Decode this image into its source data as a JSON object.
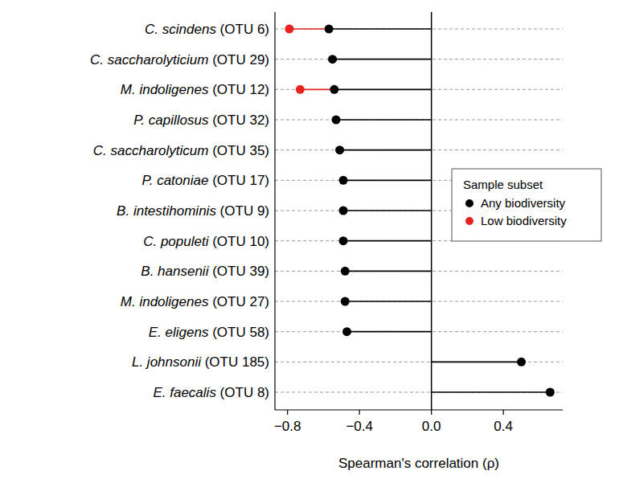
{
  "chart_data": {
    "type": "lollipop",
    "orientation": "horizontal",
    "categories": [
      "C. scindens (OTU 6)",
      "C. saccharolyticium (OTU 29)",
      "M. indoligenes (OTU 12)",
      "P. capillosus (OTU 32)",
      "C. saccharolyticum (OTU 35)",
      "P. catoniae (OTU 17)",
      "B. intestihominis (OTU 9)",
      "C. populeti (OTU 10)",
      "B. hansenii (OTU 39)",
      "M. indoligenes (OTU 27)",
      "E. eligens (OTU 58)",
      "L. johnsonii (OTU 185)",
      "E. faecalis (OTU 8)"
    ],
    "series": [
      {
        "name": "Any biodiversity",
        "color": "#000000",
        "values": [
          -0.57,
          -0.55,
          -0.54,
          -0.53,
          -0.51,
          -0.49,
          -0.49,
          -0.49,
          -0.48,
          -0.48,
          -0.47,
          0.5,
          0.66
        ]
      },
      {
        "name": "Low biodiversity",
        "color": "#e8231f",
        "values": [
          -0.79,
          null,
          -0.73,
          null,
          null,
          null,
          null,
          null,
          null,
          null,
          null,
          null,
          null
        ]
      }
    ],
    "x_label": "Spearman's correlation (ρ)",
    "xlim": [
      -0.87,
      0.73
    ],
    "xticks": [
      {
        "value": -0.8,
        "label": "−0.8"
      },
      {
        "value": -0.4,
        "label": "−0.4"
      },
      {
        "value": 0,
        "label": "0.0"
      },
      {
        "value": 0.4,
        "label": "0.4"
      }
    ],
    "grid": true,
    "legend": "right",
    "legend_title": "Sample subset"
  }
}
